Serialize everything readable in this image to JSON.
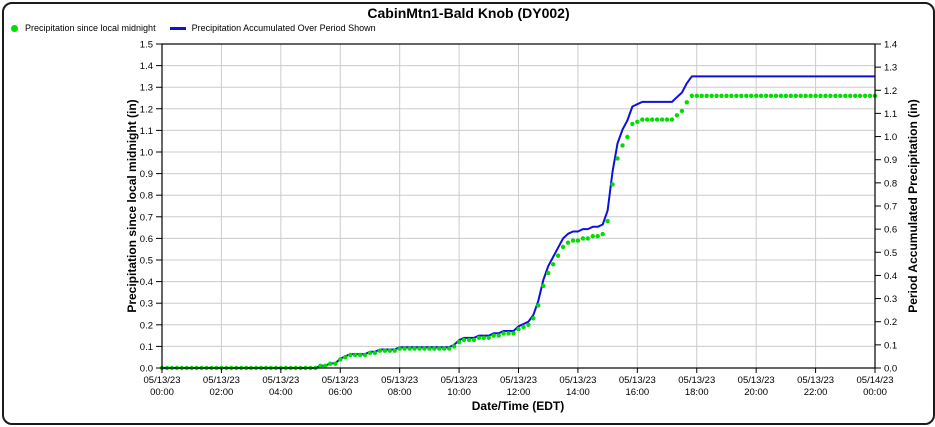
{
  "window": {
    "title": "CabinMtn1-Bald Knob (DY002)"
  },
  "legend": {
    "items": [
      {
        "label": "Precipitation since local midnight",
        "marker": "dot-icon",
        "color": "#00dd00"
      },
      {
        "label": "Precipitation Accumulated Over Period Shown",
        "marker": "line-icon",
        "color": "#1010dd"
      }
    ]
  },
  "colors": {
    "grid": "#cccccc",
    "axis": "#000000",
    "text": "#000000",
    "background": "#ffffff",
    "green_series": "#00dd00",
    "blue_series": "#1010dd"
  },
  "chart_data": {
    "type": "line",
    "title": "CabinMtn1-Bald Knob (DY002)",
    "x_label": "Date/Time (EDT)",
    "x_range_minutes": [
      0,
      1440
    ],
    "interval_minutes": 10,
    "grid": "on",
    "legend_position": "top-left",
    "x_tick_labels": [
      {
        "date": "05/13/23",
        "time": "00:00"
      },
      {
        "date": "05/13/23",
        "time": "02:00"
      },
      {
        "date": "05/13/23",
        "time": "04:00"
      },
      {
        "date": "05/13/23",
        "time": "06:00"
      },
      {
        "date": "05/13/23",
        "time": "08:00"
      },
      {
        "date": "05/13/23",
        "time": "10:00"
      },
      {
        "date": "05/13/23",
        "time": "12:00"
      },
      {
        "date": "05/13/23",
        "time": "14:00"
      },
      {
        "date": "05/13/23",
        "time": "16:00"
      },
      {
        "date": "05/13/23",
        "time": "18:00"
      },
      {
        "date": "05/13/23",
        "time": "20:00"
      },
      {
        "date": "05/13/23",
        "time": "22:00"
      },
      {
        "date": "05/14/23",
        "time": "00:00"
      }
    ],
    "left_axis": {
      "label": "Precipitation since local midnight (in)",
      "range": [
        0.0,
        1.5
      ],
      "tick_step": 0.1,
      "tick_labels": [
        "0.0",
        "0.1",
        "0.2",
        "0.3",
        "0.4",
        "0.5",
        "0.6",
        "0.7",
        "0.8",
        "0.9",
        "1.0",
        "1.1",
        "1.2",
        "1.3",
        "1.4",
        "1.5"
      ]
    },
    "right_axis": {
      "label": "Period Accumulated Precipitation (in)",
      "range": [
        0.0,
        1.4
      ],
      "tick_step": 0.1,
      "tick_labels": [
        "0.0",
        "0.1",
        "0.2",
        "0.3",
        "0.4",
        "0.5",
        "0.6",
        "0.7",
        "0.8",
        "0.9",
        "1.0",
        "1.1",
        "1.2",
        "1.3",
        "1.4"
      ]
    },
    "series": [
      {
        "name": "Precipitation since local midnight",
        "style": "scatter",
        "color": "#00dd00",
        "axis": "left",
        "values": [
          0,
          0,
          0,
          0,
          0,
          0,
          0,
          0,
          0,
          0,
          0,
          0,
          0,
          0,
          0,
          0,
          0,
          0,
          0,
          0,
          0,
          0,
          0,
          0,
          0,
          0,
          0,
          0,
          0,
          0,
          0,
          0,
          0.01,
          0.01,
          0.02,
          0.02,
          0.04,
          0.05,
          0.06,
          0.06,
          0.06,
          0.06,
          0.07,
          0.07,
          0.08,
          0.08,
          0.08,
          0.08,
          0.09,
          0.09,
          0.09,
          0.09,
          0.09,
          0.09,
          0.09,
          0.09,
          0.09,
          0.09,
          0.09,
          0.1,
          0.12,
          0.13,
          0.13,
          0.13,
          0.14,
          0.14,
          0.14,
          0.15,
          0.15,
          0.16,
          0.16,
          0.16,
          0.18,
          0.19,
          0.2,
          0.23,
          0.29,
          0.38,
          0.44,
          0.48,
          0.52,
          0.56,
          0.58,
          0.59,
          0.59,
          0.6,
          0.6,
          0.61,
          0.61,
          0.62,
          0.68,
          0.85,
          0.97,
          1.03,
          1.07,
          1.13,
          1.14,
          1.15,
          1.15,
          1.15,
          1.15,
          1.15,
          1.15,
          1.15,
          1.17,
          1.19,
          1.23,
          1.26,
          1.26,
          1.26,
          1.26,
          1.26,
          1.26,
          1.26,
          1.26,
          1.26,
          1.26,
          1.26,
          1.26,
          1.26,
          1.26,
          1.26,
          1.26,
          1.26,
          1.26,
          1.26,
          1.26,
          1.26,
          1.26,
          1.26,
          1.26,
          1.26,
          1.26,
          1.26,
          1.26,
          1.26,
          1.26,
          1.26,
          1.26,
          1.26,
          1.26,
          1.26,
          1.26,
          1.26,
          1.26
        ]
      },
      {
        "name": "Precipitation Accumulated Over Period Shown",
        "style": "line",
        "color": "#1010dd",
        "axis": "right",
        "values": [
          0,
          0,
          0,
          0,
          0,
          0,
          0,
          0,
          0,
          0,
          0,
          0,
          0,
          0,
          0,
          0,
          0,
          0,
          0,
          0,
          0,
          0,
          0,
          0,
          0,
          0,
          0,
          0,
          0,
          0,
          0,
          0,
          0.01,
          0.01,
          0.02,
          0.02,
          0.04,
          0.05,
          0.06,
          0.06,
          0.06,
          0.06,
          0.07,
          0.07,
          0.08,
          0.08,
          0.08,
          0.08,
          0.09,
          0.09,
          0.09,
          0.09,
          0.09,
          0.09,
          0.09,
          0.09,
          0.09,
          0.09,
          0.09,
          0.1,
          0.12,
          0.13,
          0.13,
          0.13,
          0.14,
          0.14,
          0.14,
          0.15,
          0.15,
          0.16,
          0.16,
          0.16,
          0.18,
          0.19,
          0.2,
          0.23,
          0.29,
          0.38,
          0.44,
          0.48,
          0.52,
          0.56,
          0.58,
          0.59,
          0.59,
          0.6,
          0.6,
          0.61,
          0.61,
          0.62,
          0.68,
          0.85,
          0.97,
          1.03,
          1.07,
          1.13,
          1.14,
          1.15,
          1.15,
          1.15,
          1.15,
          1.15,
          1.15,
          1.15,
          1.17,
          1.19,
          1.23,
          1.26,
          1.26,
          1.26,
          1.26,
          1.26,
          1.26,
          1.26,
          1.26,
          1.26,
          1.26,
          1.26,
          1.26,
          1.26,
          1.26,
          1.26,
          1.26,
          1.26,
          1.26,
          1.26,
          1.26,
          1.26,
          1.26,
          1.26,
          1.26,
          1.26,
          1.26,
          1.26,
          1.26,
          1.26,
          1.26,
          1.26,
          1.26,
          1.26,
          1.26,
          1.26,
          1.26,
          1.26,
          1.26
        ]
      }
    ]
  }
}
